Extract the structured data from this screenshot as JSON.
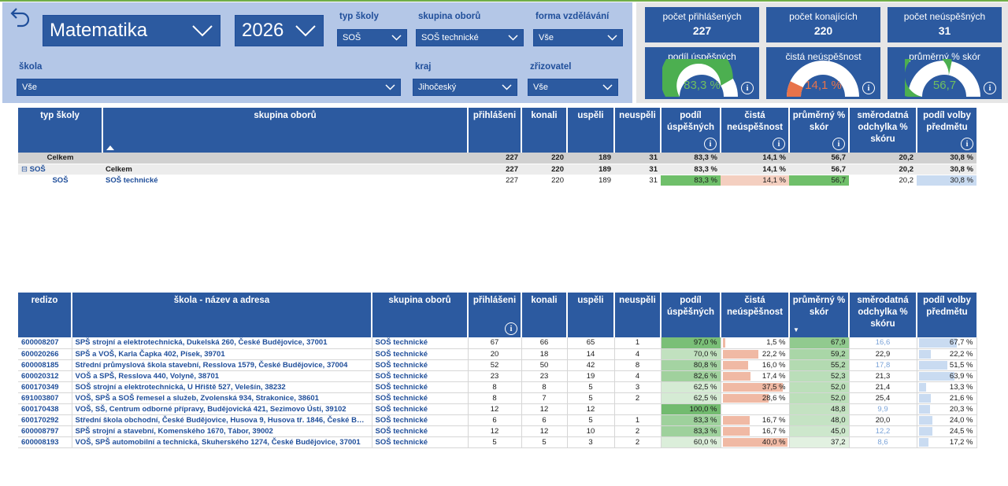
{
  "filters": {
    "subject": "Matematika",
    "year": "2026",
    "typ_skoly": {
      "label": "typ školy",
      "value": "SOŠ"
    },
    "skupina_oboru": {
      "label": "skupina oborů",
      "value": "SOŠ technické"
    },
    "forma": {
      "label": "forma vzdělávání",
      "value": "Vše"
    },
    "skola": {
      "label": "škola",
      "value": "Vše"
    },
    "kraj": {
      "label": "kraj",
      "value": "Jihočeský"
    },
    "zrizovatel": {
      "label": "zřizovatel",
      "value": "Vše"
    }
  },
  "kpis": {
    "prihlaseni": {
      "label": "počet přihlášených",
      "value": "227"
    },
    "konajici": {
      "label": "počet konajících",
      "value": "220"
    },
    "neuspesni": {
      "label": "počet neúspěšných",
      "value": "31"
    },
    "podil": {
      "label": "podíl úspěšných",
      "value": "83,3 %",
      "fraction": 0.833,
      "color": "#4caf50",
      "text_color": "#6fbf5e"
    },
    "cista": {
      "label": "čistá neúspěšnost",
      "value": "14,1 %",
      "fraction": 0.141,
      "color": "#e8734a",
      "text_color": "#e8734a"
    },
    "prumer": {
      "label": "průměrný % skór",
      "value": "56,7",
      "fraction": 0.567,
      "color": "#4caf50",
      "text_color": "#6fbf5e"
    },
    "info_glyph": "i"
  },
  "table1": {
    "headers": {
      "typ": "typ školy",
      "skupina": "skupina oborů",
      "prihlaseni": "přihlášeni",
      "konali": "konali",
      "uspeli": "uspěli",
      "neuspeli": "neuspěli",
      "podil": "podíl úspěšných",
      "cista": "čistá neúspěšnost",
      "prumer": "průměrný % skór",
      "smer": "směrodatná odchylka % skóru",
      "volba": "podíl volby předmětu"
    },
    "rows": [
      {
        "typ": "Celkem",
        "skupina": "",
        "prihlaseni": "227",
        "konali": "220",
        "uspeli": "189",
        "neuspeli": "31",
        "podil": "83,3 %",
        "cista": "14,1 %",
        "prumer": "56,7",
        "smer": "20,2",
        "volba": "30,8 %"
      },
      {
        "typ": "SOŠ",
        "skupina": "Celkem",
        "prihlaseni": "227",
        "konali": "220",
        "uspeli": "189",
        "neuspeli": "31",
        "podil": "83,3 %",
        "cista": "14,1 %",
        "prumer": "56,7",
        "smer": "20,2",
        "volba": "30,8 %"
      },
      {
        "typ": "SOŠ",
        "skupina": "SOŠ technické",
        "prihlaseni": "227",
        "konali": "220",
        "uspeli": "189",
        "neuspeli": "31",
        "podil": "83,3 %",
        "cista": "14,1 %",
        "prumer": "56,7",
        "smer": "20,2",
        "volba": "30,8 %"
      }
    ],
    "expand_glyph": "⊟"
  },
  "table2": {
    "headers": {
      "redizo": "redizo",
      "skola": "škola - název a adresa",
      "skupina": "skupina oborů",
      "prihlaseni": "přihlášeni",
      "konali": "konali",
      "uspeli": "uspěli",
      "neuspeli": "neuspěli",
      "podil": "podíl úspěšných",
      "cista": "čistá neúspěšnost",
      "prumer": "průměrný % skór",
      "smer": "směrodatná odchylka % skóru",
      "volba": "podíl volby předmětu"
    },
    "rows": [
      {
        "redizo": "600008207",
        "skola": "SPŠ strojní a elektrotechnická, Dukelská 260, České Budějovice, 37001",
        "skupina": "SOŠ technické",
        "prihlaseni": "67",
        "konali": "66",
        "uspeli": "65",
        "neuspeli": "1",
        "podil": "97,0 %",
        "cista": "1,5 %",
        "prumer": "67,9",
        "smer": "16,6",
        "volba": "67,7 %",
        "podil_f": 0.97,
        "cista_f": 0.015,
        "prumer_f": 0.679,
        "volba_f": 0.677,
        "smer_light": true
      },
      {
        "redizo": "600020266",
        "skola": "SPŠ a VOŠ, Karla Čapka 402, Písek, 39701",
        "skupina": "SOŠ technické",
        "prihlaseni": "20",
        "konali": "18",
        "uspeli": "14",
        "neuspeli": "4",
        "podil": "70,0 %",
        "cista": "22,2 %",
        "prumer": "59,2",
        "smer": "22,9",
        "volba": "22,2 %",
        "podil_f": 0.7,
        "cista_f": 0.222,
        "prumer_f": 0.592,
        "volba_f": 0.222,
        "smer_light": false
      },
      {
        "redizo": "600008185",
        "skola": "Střední průmyslová škola stavební, Resslova 1579, České Budějovice, 37004",
        "skupina": "SOŠ technické",
        "prihlaseni": "52",
        "konali": "50",
        "uspeli": "42",
        "neuspeli": "8",
        "podil": "80,8 %",
        "cista": "16,0 %",
        "prumer": "55,2",
        "smer": "17,8",
        "volba": "51,5 %",
        "podil_f": 0.808,
        "cista_f": 0.16,
        "prumer_f": 0.552,
        "volba_f": 0.515,
        "smer_light": true
      },
      {
        "redizo": "600020312",
        "skola": "VOŠ a SPŠ, Resslova 440, Volyně, 38701",
        "skupina": "SOŠ technické",
        "prihlaseni": "23",
        "konali": "23",
        "uspeli": "19",
        "neuspeli": "4",
        "podil": "82,6 %",
        "cista": "17,4 %",
        "prumer": "52,3",
        "smer": "21,3",
        "volba": "63,9 %",
        "podil_f": 0.826,
        "cista_f": 0.174,
        "prumer_f": 0.523,
        "volba_f": 0.639,
        "smer_light": false
      },
      {
        "redizo": "600170349",
        "skola": "SOŠ strojní a elektrotechnická, U Hřiště 527, Velešín, 38232",
        "skupina": "SOŠ technické",
        "prihlaseni": "8",
        "konali": "8",
        "uspeli": "5",
        "neuspeli": "3",
        "podil": "62,5 %",
        "cista": "37,5 %",
        "prumer": "52,0",
        "smer": "21,4",
        "volba": "13,3 %",
        "podil_f": 0.625,
        "cista_f": 0.375,
        "prumer_f": 0.52,
        "volba_f": 0.133,
        "smer_light": false
      },
      {
        "redizo": "691003807",
        "skola": "VOŠ, SPŠ a SOŠ řemesel a služeb, Zvolenská 934, Strakonice, 38601",
        "skupina": "SOŠ technické",
        "prihlaseni": "8",
        "konali": "7",
        "uspeli": "5",
        "neuspeli": "2",
        "podil": "62,5 %",
        "cista": "28,6 %",
        "prumer": "52,0",
        "smer": "25,4",
        "volba": "21,6 %",
        "podil_f": 0.625,
        "cista_f": 0.286,
        "prumer_f": 0.52,
        "volba_f": 0.216,
        "smer_light": false
      },
      {
        "redizo": "600170438",
        "skola": "VOŠ, SŠ, Centrum odborné přípravy, Budějovická 421, Sezimovo Ústí, 39102",
        "skupina": "SOŠ technické",
        "prihlaseni": "12",
        "konali": "12",
        "uspeli": "12",
        "neuspeli": "",
        "podil": "100,0 %",
        "cista": "",
        "prumer": "48,8",
        "smer": "9,9",
        "volba": "20,3 %",
        "podil_f": 1.0,
        "cista_f": 0,
        "prumer_f": 0.488,
        "volba_f": 0.203,
        "smer_light": true
      },
      {
        "redizo": "600170292",
        "skola": "Střední škola obchodní, České Budějovice, Husova 9, Husova tř. 1846, České Buděj…",
        "skupina": "SOŠ technické",
        "prihlaseni": "6",
        "konali": "6",
        "uspeli": "5",
        "neuspeli": "1",
        "podil": "83,3 %",
        "cista": "16,7 %",
        "prumer": "48,0",
        "smer": "20,0",
        "volba": "24,0 %",
        "podil_f": 0.833,
        "cista_f": 0.167,
        "prumer_f": 0.48,
        "volba_f": 0.24,
        "smer_light": false
      },
      {
        "redizo": "600008797",
        "skola": "SPŠ strojní a stavební, Komenského 1670, Tábor, 39002",
        "skupina": "SOŠ technické",
        "prihlaseni": "12",
        "konali": "12",
        "uspeli": "10",
        "neuspeli": "2",
        "podil": "83,3 %",
        "cista": "16,7 %",
        "prumer": "45,0",
        "smer": "12,2",
        "volba": "24,5 %",
        "podil_f": 0.833,
        "cista_f": 0.167,
        "prumer_f": 0.45,
        "volba_f": 0.245,
        "smer_light": true
      },
      {
        "redizo": "600008193",
        "skola": "VOŠ, SPŠ automobilní a technická, Skuherského 1274, České Budějovice, 37001",
        "skupina": "SOŠ technické",
        "prihlaseni": "5",
        "konali": "5",
        "uspeli": "3",
        "neuspeli": "2",
        "podil": "60,0 %",
        "cista": "40,0 %",
        "prumer": "37,2",
        "smer": "8,6",
        "volba": "17,2 %",
        "podil_f": 0.6,
        "cista_f": 0.4,
        "prumer_f": 0.372,
        "volba_f": 0.172,
        "smer_light": true
      }
    ],
    "sort_glyph": "▼"
  }
}
